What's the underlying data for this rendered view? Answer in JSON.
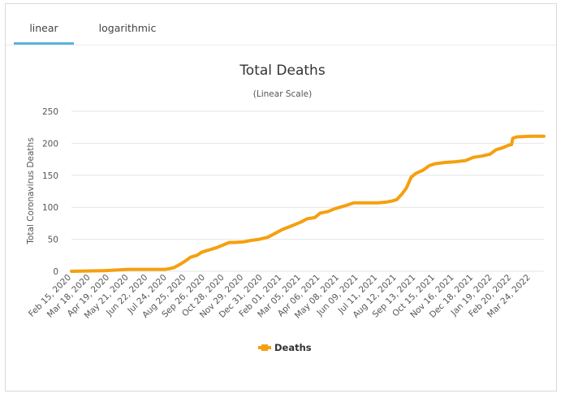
{
  "tabs": [
    {
      "label": "linear",
      "active": true
    },
    {
      "label": "logarithmic",
      "active": false
    }
  ],
  "colors": {
    "series": "#f5a00f",
    "grid": "#e6e6e6",
    "tab_active": "#5ab4d8"
  },
  "chart_data": {
    "type": "line",
    "title": "Total Deaths",
    "subtitle": "(Linear Scale)",
    "ylabel": "Total Coronavirus Deaths",
    "xlabel": "",
    "ylim": [
      0,
      250
    ],
    "yticks": [
      0,
      50,
      100,
      150,
      200,
      250
    ],
    "grid": true,
    "legend_position": "bottom-center",
    "x_tick_labels": [
      "Feb 15, 2020",
      "Mar 18, 2020",
      "Apr 19, 2020",
      "May 21, 2020",
      "Jun 22, 2020",
      "Jul 24, 2020",
      "Aug 25, 2020",
      "Sep 26, 2020",
      "Oct 28, 2020",
      "Nov 29, 2020",
      "Dec 31, 2020",
      "Feb 01, 2021",
      "Mar 05, 2021",
      "Apr 06, 2021",
      "May 08, 2021",
      "Jun 09, 2021",
      "Jul 11, 2021",
      "Aug 12, 2021",
      "Sep 13, 2021",
      "Oct 15, 2021",
      "Nov 16, 2021",
      "Dec 18, 2021",
      "Jan 19, 2022",
      "Feb 20, 2022",
      "Mar 24, 2022"
    ],
    "series": [
      {
        "name": "Deaths",
        "points": [
          [
            "2020-02-15",
            0
          ],
          [
            "2020-04-10",
            1
          ],
          [
            "2020-05-01",
            2
          ],
          [
            "2020-05-20",
            3
          ],
          [
            "2020-07-20",
            3
          ],
          [
            "2020-07-28",
            4
          ],
          [
            "2020-08-05",
            6
          ],
          [
            "2020-08-15",
            11
          ],
          [
            "2020-08-25",
            17
          ],
          [
            "2020-09-01",
            22
          ],
          [
            "2020-09-12",
            25
          ],
          [
            "2020-09-20",
            30
          ],
          [
            "2020-10-01",
            33
          ],
          [
            "2020-10-15",
            37
          ],
          [
            "2020-10-28",
            42
          ],
          [
            "2020-11-05",
            45
          ],
          [
            "2020-11-15",
            45
          ],
          [
            "2020-11-29",
            46
          ],
          [
            "2020-12-10",
            48
          ],
          [
            "2020-12-25",
            50
          ],
          [
            "2021-01-08",
            53
          ],
          [
            "2021-01-18",
            58
          ],
          [
            "2021-02-01",
            65
          ],
          [
            "2021-02-15",
            70
          ],
          [
            "2021-03-05",
            77
          ],
          [
            "2021-03-15",
            82
          ],
          [
            "2021-03-28",
            84
          ],
          [
            "2021-04-06",
            91
          ],
          [
            "2021-04-18",
            93
          ],
          [
            "2021-05-01",
            98
          ],
          [
            "2021-05-20",
            103
          ],
          [
            "2021-06-01",
            107
          ],
          [
            "2021-06-20",
            107
          ],
          [
            "2021-07-11",
            107
          ],
          [
            "2021-07-25",
            108
          ],
          [
            "2021-08-05",
            110
          ],
          [
            "2021-08-12",
            112
          ],
          [
            "2021-08-20",
            120
          ],
          [
            "2021-08-28",
            130
          ],
          [
            "2021-09-05",
            147
          ],
          [
            "2021-09-13",
            153
          ],
          [
            "2021-09-25",
            158
          ],
          [
            "2021-10-05",
            165
          ],
          [
            "2021-10-15",
            168
          ],
          [
            "2021-11-01",
            170
          ],
          [
            "2021-11-16",
            171
          ],
          [
            "2021-12-05",
            173
          ],
          [
            "2021-12-18",
            178
          ],
          [
            "2022-01-01",
            180
          ],
          [
            "2022-01-15",
            183
          ],
          [
            "2022-01-25",
            190
          ],
          [
            "2022-02-05",
            193
          ],
          [
            "2022-02-15",
            197
          ],
          [
            "2022-02-20",
            198
          ],
          [
            "2022-02-22",
            208
          ],
          [
            "2022-03-01",
            210
          ],
          [
            "2022-03-24",
            211
          ],
          [
            "2022-04-15",
            211
          ]
        ]
      }
    ]
  }
}
